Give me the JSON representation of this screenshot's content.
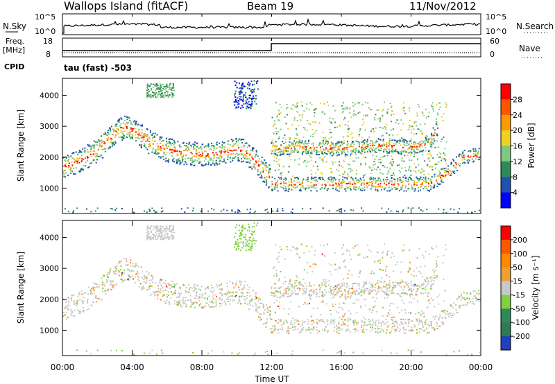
{
  "header": {
    "title": "Wallops Island (fitACF)",
    "beam": "Beam 19",
    "date": "11/Nov/2012"
  },
  "top_panels": {
    "nsky_label": "N.Sky",
    "nsearch_label": "N.Search",
    "nsky_ticks": [
      "10^5",
      "10^0"
    ],
    "nsearch_ticks": [
      "10^5",
      "10^0"
    ],
    "freq_label": "Freq.",
    "freq_unit": "[MHz]",
    "freq_ticks": [
      "18",
      "8"
    ],
    "nave_label": "Nave",
    "nave_ticks": [
      "60",
      "0"
    ],
    "cpid_label": "CPID",
    "cpid_value": "tau (fast) -503"
  },
  "chart_data": [
    {
      "type": "heatmap",
      "name": "power",
      "ylabel": "Slant Range [km]",
      "y_ticks": [
        "1000",
        "2000",
        "3000",
        "4000"
      ],
      "colorbar_label": "Power [dB]",
      "colorbar_ticks": [
        "4",
        "8",
        "12",
        "16",
        "20",
        "24",
        "28"
      ],
      "colorbar_colors": [
        "#0000ff",
        "#2050b0",
        "#2e8b57",
        "#7fc87f",
        "#f0d020",
        "#ff9900",
        "#ff5500",
        "#ff0000"
      ],
      "features": [
        {
          "x": [
            0,
            1,
            2,
            3,
            3.5,
            4,
            5,
            6,
            7,
            8,
            9,
            10,
            10.5,
            11,
            11.5,
            12
          ],
          "y": [
            1700,
            1900,
            2250,
            2800,
            3000,
            2900,
            2500,
            2250,
            2150,
            2100,
            2150,
            2300,
            2200,
            1900,
            1600,
            1300
          ]
        },
        {
          "x": [
            12,
            14,
            16,
            18,
            20,
            21,
            22,
            23,
            24
          ],
          "y": [
            1150,
            1150,
            1150,
            1150,
            1150,
            1150,
            1500,
            2050,
            2100
          ]
        },
        {
          "x": [
            12,
            14,
            16,
            18,
            20,
            21,
            21.5
          ],
          "y": [
            2300,
            2350,
            2300,
            2400,
            2350,
            2450,
            3000
          ]
        }
      ]
    },
    {
      "type": "heatmap",
      "name": "velocity",
      "xlabel": "Time UT",
      "ylabel": "Slant Range [km]",
      "x_ticks": [
        "00:00",
        "04:00",
        "08:00",
        "12:00",
        "16:00",
        "20:00",
        "00:00"
      ],
      "y_ticks": [
        "1000",
        "2000",
        "3000",
        "4000"
      ],
      "colorbar_label": "Velocity [m s⁻¹]",
      "colorbar_ticks": [
        "200",
        "100",
        "50",
        "15",
        "-15",
        "-50",
        "-100",
        "-200"
      ],
      "colorbar_colors": [
        "#2040c0",
        "#2e7b57",
        "#2e8b57",
        "#80d040",
        "#c8c8c8",
        "#f0a030",
        "#ff8800",
        "#ff5500",
        "#ff0000"
      ]
    }
  ],
  "colors": {
    "background": "#ffffff",
    "axis": "#000000",
    "ground_scatter": "#c8c8c8"
  }
}
